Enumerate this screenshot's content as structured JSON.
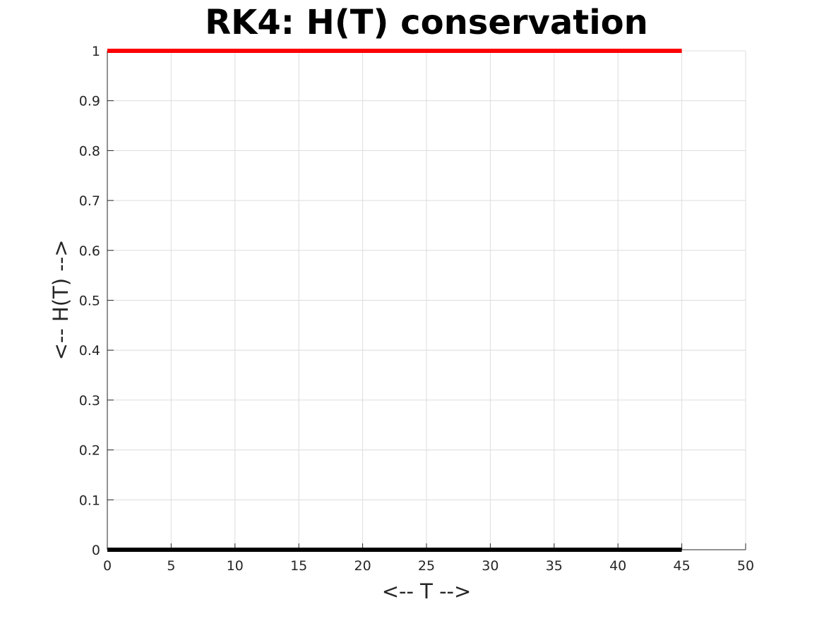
{
  "chart_data": {
    "type": "line",
    "title": "RK4: H(T) conservation",
    "xlabel": "<-- T -->",
    "ylabel": "<-- H(T) -->",
    "xlim": [
      0,
      50
    ],
    "ylim": [
      0,
      1
    ],
    "x_ticks": [
      0,
      5,
      10,
      15,
      20,
      25,
      30,
      35,
      40,
      45,
      50
    ],
    "y_ticks": [
      0,
      0.1,
      0.2,
      0.3,
      0.4,
      0.5,
      0.6,
      0.7,
      0.8,
      0.9,
      1
    ],
    "x_tick_labels": [
      "0",
      "5",
      "10",
      "15",
      "20",
      "25",
      "30",
      "35",
      "40",
      "45",
      "50"
    ],
    "y_tick_labels": [
      "0",
      "0.1",
      "0.2",
      "0.3",
      "0.4",
      "0.5",
      "0.6",
      "0.7",
      "0.8",
      "0.9",
      "1"
    ],
    "grid": true,
    "series": [
      {
        "color": "#ff0000",
        "x": [
          0,
          45
        ],
        "y": [
          1,
          1
        ]
      },
      {
        "color": "#000000",
        "x": [
          0,
          45
        ],
        "y": [
          0,
          0
        ]
      }
    ]
  }
}
